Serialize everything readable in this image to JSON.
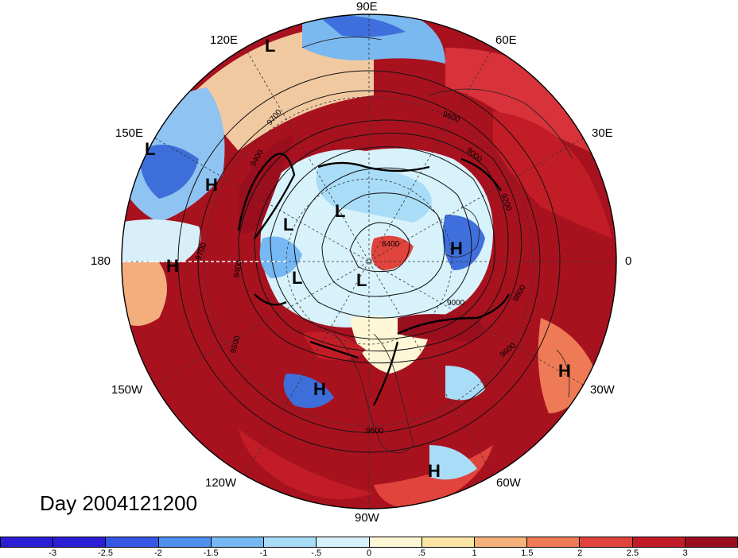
{
  "longitude_labels": {
    "e90": "90E",
    "e120": "120E",
    "e60": "60E",
    "e150": "150E",
    "e30": "30E",
    "w180": "180",
    "zero": "0",
    "w150": "150W",
    "w30": "30W",
    "w120": "120W",
    "w60": "60W",
    "w90": "90W"
  },
  "day_label": "Day 2004121200",
  "pressure_centers": {
    "L_120E": "L",
    "L_150E": "L",
    "H_160E": "H",
    "H_180": "H",
    "L_arctic_a": "L",
    "L_arctic_b": "L",
    "L_arctic_c": "L",
    "L_arctic_d": "L",
    "H_europe": "H",
    "H_pacific": "H",
    "H_atlantic": "H",
    "H_caribbean": "H"
  },
  "contour_labels": {
    "c9700_a": "9700",
    "c9600_a": "9600",
    "c9700_b": "9700",
    "c9400_a": "9400",
    "c9200_a": "9200",
    "c9000_a": "9000",
    "c8400": "8400",
    "c9600_b": "9600",
    "c9500": "9500",
    "c9000_b": "9000",
    "c9600_c": "9600",
    "c9400_b": "9400",
    "c9800": "9800"
  },
  "colorbar": {
    "ticks": [
      "-3",
      "-2.5",
      "-2",
      "-1.5",
      "-1",
      "-.5",
      "0",
      ".5",
      "1",
      "1.5",
      "2",
      "2.5",
      "3"
    ],
    "colors": [
      "#2c1ed4",
      "#3656e6",
      "#4f8fef",
      "#76b8f3",
      "#a9dcf7",
      "#d7f2fb",
      "#fdf7d6",
      "#fce5a4",
      "#f6b27a",
      "#ee7a56",
      "#e0443c",
      "#c21d26",
      "#9b0e1e"
    ]
  }
}
